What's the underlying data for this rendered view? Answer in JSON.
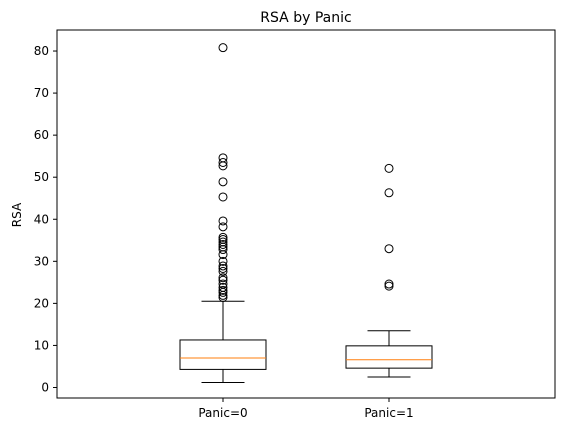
{
  "chart_data": {
    "type": "box",
    "title": "RSA by Panic",
    "xlabel": "",
    "ylabel": "RSA",
    "ylim": [
      -2.5,
      85
    ],
    "yticks": [
      0,
      10,
      20,
      30,
      40,
      50,
      60,
      70,
      80
    ],
    "categories": [
      "Panic=0",
      "Panic=1"
    ],
    "boxes": [
      {
        "label": "Panic=0",
        "whisker_low": 1.2,
        "q1": 4.3,
        "median": 7.0,
        "q3": 11.3,
        "whisker_high": 20.5,
        "outliers": [
          80.8,
          54.6,
          53.5,
          52.7,
          48.9,
          45.3,
          39.6,
          38.2,
          35.7,
          35.2,
          34.6,
          34.0,
          33.4,
          32.8,
          31.6,
          30.0,
          28.9,
          28.3,
          27.6,
          26.1,
          25.5,
          24.6,
          23.8,
          23.1,
          22.6,
          21.9,
          21.4
        ]
      },
      {
        "label": "Panic=1",
        "whisker_low": 2.5,
        "q1": 4.6,
        "median": 6.6,
        "q3": 9.9,
        "whisker_high": 13.5,
        "outliers": [
          52.1,
          46.3,
          33.0,
          24.6,
          24.1
        ]
      }
    ],
    "colors": {
      "box": "#000000",
      "median": "#ff7f0e",
      "outlier_edge": "#000000",
      "frame": "#000000"
    },
    "grid": false,
    "legend": "none"
  }
}
